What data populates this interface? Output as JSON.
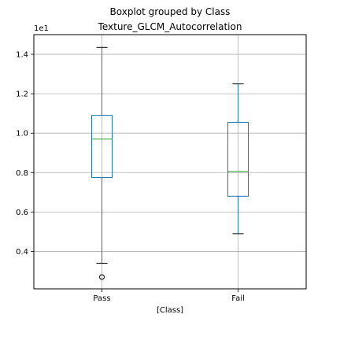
{
  "chart_data": {
    "type": "box",
    "suptitle": "Boxplot grouped by Class",
    "title": "Texture_GLCM_Autocorrelation",
    "xlabel": "[Class]",
    "ylabel": "",
    "y_offset_label": "1e1",
    "categories": [
      "Pass",
      "Fail"
    ],
    "yticks": [
      "0.4",
      "0.6",
      "0.8",
      "1.0",
      "1.2",
      "1.4"
    ],
    "ylim": [
      0.21,
      1.5
    ],
    "grid": true,
    "boxes": [
      {
        "category": "Pass",
        "whisker_low": 0.34,
        "q1": 0.775,
        "median": 0.97,
        "q3": 1.09,
        "whisker_high": 1.435,
        "outliers": [
          0.27
        ]
      },
      {
        "category": "Fail",
        "whisker_low": 0.49,
        "q1": 0.68,
        "median": 0.805,
        "q3": 1.055,
        "whisker_high": 1.25,
        "outliers": []
      }
    ],
    "colors": {
      "box": "#1f77b4",
      "median": "#2ca02c",
      "whisker": "#1f77b4",
      "cap": "#000000",
      "grid": "#b0b0b0",
      "axes": "#000000",
      "flier": "#000000"
    }
  }
}
